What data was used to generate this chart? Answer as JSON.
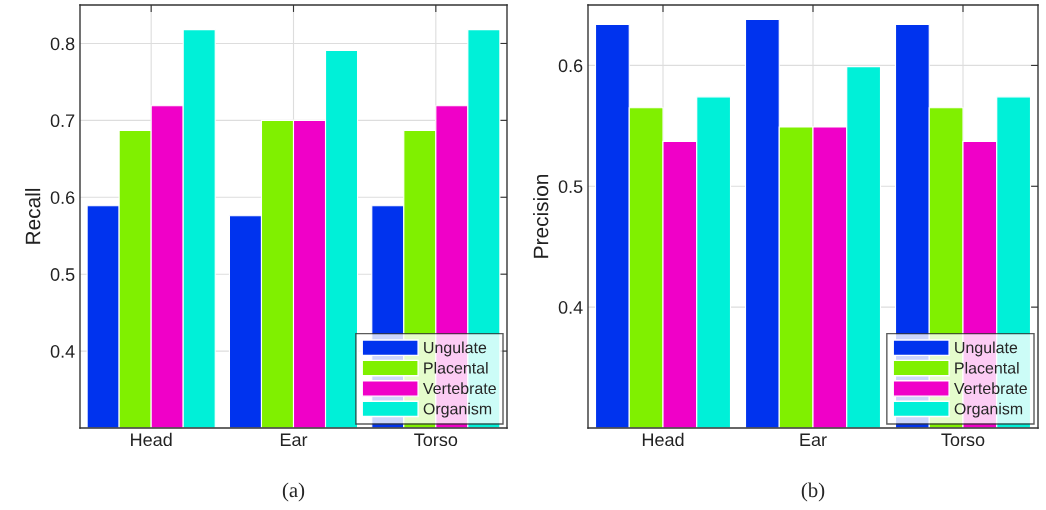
{
  "chart_data": [
    {
      "type": "bar",
      "ylabel": "Recall",
      "categories": [
        "Head",
        "Ear",
        "Torso"
      ],
      "series": [
        {
          "name": "Ungulate",
          "color": "#0033ee",
          "values": [
            0.589,
            0.576,
            0.589
          ]
        },
        {
          "name": "Placental",
          "color": "#80f000",
          "values": [
            0.687,
            0.7,
            0.687
          ]
        },
        {
          "name": "Vertebrate",
          "color": "#f000c8",
          "values": [
            0.719,
            0.7,
            0.719
          ]
        },
        {
          "name": "Organism",
          "color": "#00f0d8",
          "values": [
            0.818,
            0.791,
            0.818
          ]
        }
      ],
      "ylim": [
        0.3,
        0.85
      ],
      "yticks": [
        0.4,
        0.5,
        0.6,
        0.7,
        0.8
      ],
      "grid": true,
      "legend": "bottom right",
      "annotations": [
        "(a)"
      ]
    },
    {
      "type": "bar",
      "ylabel": "Precision",
      "categories": [
        "Head",
        "Ear",
        "Torso"
      ],
      "series": [
        {
          "name": "Ungulate",
          "color": "#0033ee",
          "values": [
            0.634,
            0.638,
            0.634
          ]
        },
        {
          "name": "Placental",
          "color": "#80f000",
          "values": [
            0.565,
            0.549,
            0.565
          ]
        },
        {
          "name": "Vertebrate",
          "color": "#f000c8",
          "values": [
            0.537,
            0.549,
            0.537
          ]
        },
        {
          "name": "Organism",
          "color": "#00f0d8",
          "values": [
            0.574,
            0.599,
            0.574
          ]
        }
      ],
      "ylim": [
        0.3,
        0.65
      ],
      "yticks": [
        0.4,
        0.5,
        0.6
      ],
      "grid": true,
      "legend": "bottom right",
      "annotations": [
        "(b)"
      ]
    }
  ]
}
